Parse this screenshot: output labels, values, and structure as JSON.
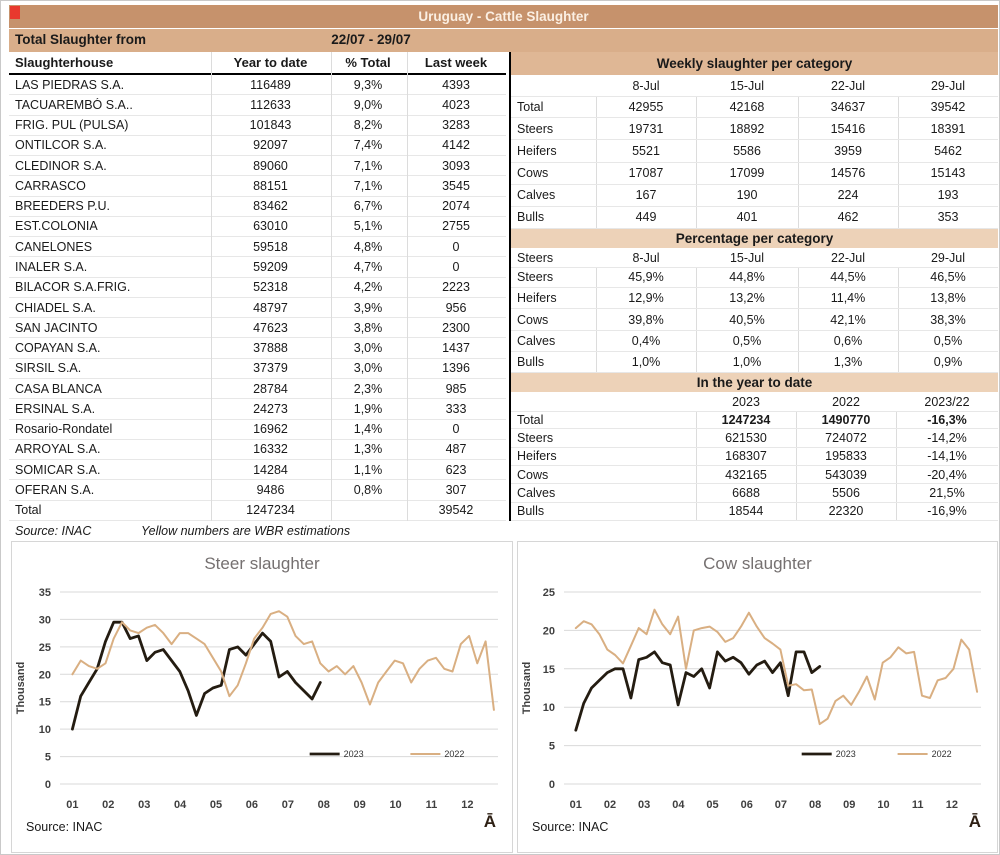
{
  "page": {
    "title": "Uruguay - Cattle Slaughter"
  },
  "subheader": {
    "label": "Total Slaughter from",
    "date_range": "22/07 - 29/07"
  },
  "left_table": {
    "headers": [
      "Slaughterhouse",
      "Year to date",
      "% Total",
      "Last week"
    ],
    "rows": [
      [
        "LAS PIEDRAS S.A.",
        "116489",
        "9,3%",
        "4393"
      ],
      [
        "TACUAREMBÓ S.A..",
        "112633",
        "9,0%",
        "4023"
      ],
      [
        "FRIG. PUL (PULSA)",
        "101843",
        "8,2%",
        "3283"
      ],
      [
        "ONTILCOR S.A.",
        "92097",
        "7,4%",
        "4142"
      ],
      [
        "CLEDINOR S.A.",
        "89060",
        "7,1%",
        "3093"
      ],
      [
        "CARRASCO",
        "88151",
        "7,1%",
        "3545"
      ],
      [
        "BREEDERS P.U.",
        "83462",
        "6,7%",
        "2074"
      ],
      [
        "EST.COLONIA",
        "63010",
        "5,1%",
        "2755"
      ],
      [
        "CANELONES",
        "59518",
        "4,8%",
        "0"
      ],
      [
        "INALER S.A.",
        "59209",
        "4,7%",
        "0"
      ],
      [
        "BILACOR S.A.FRIG.",
        "52318",
        "4,2%",
        "2223"
      ],
      [
        "CHIADEL S.A.",
        "48797",
        "3,9%",
        "956"
      ],
      [
        "SAN JACINTO",
        "47623",
        "3,8%",
        "2300"
      ],
      [
        "COPAYAN S.A.",
        "37888",
        "3,0%",
        "1437"
      ],
      [
        "SIRSIL S.A.",
        "37379",
        "3,0%",
        "1396"
      ],
      [
        "CASA BLANCA",
        "28784",
        "2,3%",
        "985"
      ],
      [
        "ERSINAL S.A.",
        "24273",
        "1,9%",
        "333"
      ],
      [
        "Rosario-Rondatel",
        "16962",
        "1,4%",
        "0"
      ],
      [
        "ARROYAL S.A.",
        "16332",
        "1,3%",
        "487"
      ],
      [
        "SOMICAR S.A.",
        "14284",
        "1,1%",
        "623"
      ],
      [
        "OFERAN S.A.",
        "9486",
        "0,8%",
        "307"
      ],
      [
        "Total",
        "1247234",
        "",
        "39542"
      ]
    ],
    "source": "Source: INAC",
    "note": "Yellow numbers are WBR estimations"
  },
  "weekly": {
    "title": "Weekly slaughter per category",
    "date_columns": [
      "8-Jul",
      "15-Jul",
      "22-Jul",
      "29-Jul"
    ],
    "rows": [
      [
        "Total",
        "42955",
        "42168",
        "34637",
        "39542"
      ],
      [
        "Steers",
        "19731",
        "18892",
        "15416",
        "18391"
      ],
      [
        "Heifers",
        "5521",
        "5586",
        "3959",
        "5462"
      ],
      [
        "Cows",
        "17087",
        "17099",
        "14576",
        "15143"
      ],
      [
        "Calves",
        "167",
        "190",
        "224",
        "193"
      ],
      [
        "Bulls",
        "449",
        "401",
        "462",
        "353"
      ]
    ]
  },
  "percentage": {
    "title": "Percentage per category",
    "header_label": "Steers",
    "date_columns": [
      "8-Jul",
      "15-Jul",
      "22-Jul",
      "29-Jul"
    ],
    "rows": [
      [
        "Steers",
        "45,9%",
        "44,8%",
        "44,5%",
        "46,5%"
      ],
      [
        "Heifers",
        "12,9%",
        "13,2%",
        "11,4%",
        "13,8%"
      ],
      [
        "Cows",
        "39,8%",
        "40,5%",
        "42,1%",
        "38,3%"
      ],
      [
        "Calves",
        "0,4%",
        "0,5%",
        "0,6%",
        "0,5%"
      ],
      [
        "Bulls",
        "1,0%",
        "1,0%",
        "1,3%",
        "0,9%"
      ]
    ]
  },
  "ytd": {
    "title": "In the year to date",
    "year_columns": [
      "2023",
      "2022",
      "2023/22"
    ],
    "rows": [
      [
        "Total",
        "1247234",
        "1490770",
        "-16,3%"
      ],
      [
        "Steers",
        "621530",
        "724072",
        "-14,2%"
      ],
      [
        "Heifers",
        "168307",
        "195833",
        "-14,1%"
      ],
      [
        "Cows",
        "432165",
        "543039",
        "-20,4%"
      ],
      [
        "Calves",
        "6688",
        "5506",
        "21,5%"
      ],
      [
        "Bulls",
        "18544",
        "22320",
        "-16,9%"
      ]
    ],
    "bold_row_index": 0
  },
  "chart_data": [
    {
      "type": "line",
      "title": "Steer slaughter",
      "ylabel": "Thousand",
      "ylim": [
        0,
        35
      ],
      "ytick": 5,
      "grid": true,
      "legend_position": "inside-bottom-right",
      "categories": [
        "01",
        "02",
        "03",
        "04",
        "05",
        "06",
        "07",
        "08",
        "09",
        "10",
        "11",
        "12"
      ],
      "x_unit": "week-of-year",
      "series": [
        {
          "name": "2023",
          "color": "#241C11",
          "values": [
            10,
            16,
            18.5,
            21,
            26,
            29.5,
            29.5,
            26.5,
            27,
            22.5,
            24,
            24.5,
            22.5,
            20.5,
            17,
            12.5,
            16.5,
            17.5,
            18,
            24.5,
            25,
            23.5,
            25.5,
            27.5,
            26,
            19.5,
            20.5,
            18.5,
            17,
            15.5,
            18.5
          ]
        },
        {
          "name": "2022",
          "color": "#D9AF82",
          "values": [
            20,
            22.5,
            21.5,
            21,
            22,
            26.5,
            29.5,
            28,
            27.5,
            28.5,
            29,
            27.5,
            25.5,
            27.5,
            27.5,
            26.5,
            25.5,
            23,
            20.5,
            16,
            18,
            22,
            26.5,
            28.5,
            31,
            31.5,
            30.5,
            27,
            25.5,
            26,
            22,
            20.5,
            21.5,
            20,
            21.5,
            18.5,
            14.5,
            18.5,
            20.5,
            22.5,
            22,
            18.5,
            21,
            22.5,
            23,
            21,
            20.5,
            25.5,
            27,
            22,
            26,
            13.5
          ]
        }
      ],
      "source": "Source: INAC",
      "logo": "Ā"
    },
    {
      "type": "line",
      "title": "Cow slaughter",
      "ylabel": "Thousand",
      "ylim": [
        0,
        25
      ],
      "ytick": 5,
      "grid": true,
      "legend_position": "inside-bottom-right",
      "categories": [
        "01",
        "02",
        "03",
        "04",
        "05",
        "06",
        "07",
        "08",
        "09",
        "10",
        "11",
        "12"
      ],
      "x_unit": "week-of-year",
      "series": [
        {
          "name": "2023",
          "color": "#241C11",
          "values": [
            7,
            10.5,
            12.5,
            13.5,
            14.5,
            15,
            15,
            11.2,
            16.2,
            16.5,
            17.2,
            15.8,
            15.5,
            10.3,
            14.5,
            14,
            15,
            12.5,
            17.2,
            16,
            16.5,
            15.8,
            14.3,
            15.5,
            16,
            14.5,
            15.8,
            11.5,
            17.2,
            17.2,
            14.5,
            15.3
          ]
        },
        {
          "name": "2022",
          "color": "#D9AF82",
          "values": [
            20.3,
            21.2,
            20.8,
            19.5,
            17.5,
            16.8,
            15.7,
            18,
            20.3,
            19.5,
            22.7,
            20.8,
            19.5,
            21.8,
            15,
            20,
            20.3,
            20.5,
            19.8,
            18.5,
            19,
            20.5,
            22.3,
            20.5,
            19,
            18.3,
            17.5,
            12.8,
            13,
            12.2,
            12.3,
            7.8,
            8.5,
            10.8,
            11.5,
            10.3,
            12,
            14,
            11,
            15.8,
            16.5,
            17.8,
            17,
            17.2,
            11.5,
            11.2,
            13.5,
            13.8,
            15,
            18.8,
            17.5,
            12
          ]
        }
      ],
      "source": "Source: INAC",
      "logo": "Ā"
    }
  ],
  "colors": {
    "title_bar": "#C6926C",
    "subheader_band": "#D9AE8A",
    "weekly_header": "#DFB795",
    "section_header": "#EDD2B8",
    "gridline": "#D9D9D9",
    "series_2023": "#241C11",
    "series_2022": "#D9AF82",
    "corner_marker": "#E8392E"
  }
}
